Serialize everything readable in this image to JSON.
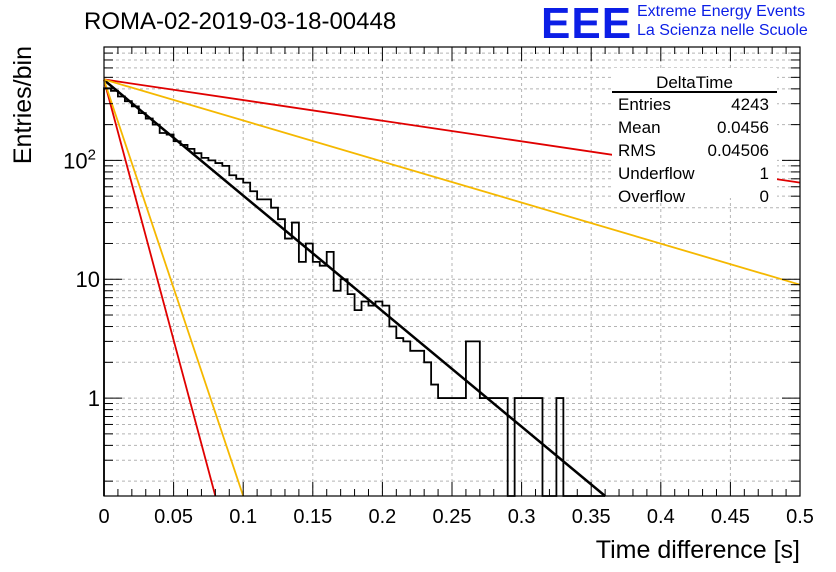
{
  "header": {
    "title": "ROMA-02-2019-03-18-00448",
    "logo_text": "EEE",
    "logo_line1": "Extreme Energy Events",
    "logo_line2": "La Scienza nelle Scuole"
  },
  "colors": {
    "frame": "#000000",
    "grid": "#b4b4b4",
    "histogram": "#000000",
    "fit": "#000000",
    "red_curve": "#e00000",
    "orange_curve": "#f5b800",
    "logo": "#0b1ee6"
  },
  "chart_data": {
    "type": "histogram",
    "title": "ROMA-02-2019-03-18-00448",
    "xlabel": "Time difference [s]",
    "ylabel": "Entries/bin",
    "xlim": [
      0,
      0.5
    ],
    "ylim": [
      0.15,
      900
    ],
    "yscale": "log",
    "grid": true,
    "x_ticks": [
      0,
      0.05,
      0.1,
      0.15,
      0.2,
      0.25,
      0.3,
      0.35,
      0.4,
      0.45,
      0.5
    ],
    "x_tick_labels": [
      "0",
      "0.05",
      "0.1",
      "0.15",
      "0.2",
      "0.25",
      "0.3",
      "0.35",
      "0.4",
      "0.45",
      "0.5"
    ],
    "y_ticks": [
      1,
      10,
      100
    ],
    "y_tick_labels": [
      "1",
      "10",
      "10²"
    ],
    "bin_width": 0.005,
    "bins": [
      [
        0.0,
        405
      ],
      [
        0.005,
        385
      ],
      [
        0.01,
        345
      ],
      [
        0.015,
        315
      ],
      [
        0.02,
        285
      ],
      [
        0.025,
        250
      ],
      [
        0.03,
        225
      ],
      [
        0.035,
        200
      ],
      [
        0.04,
        170
      ],
      [
        0.045,
        165
      ],
      [
        0.05,
        145
      ],
      [
        0.055,
        135
      ],
      [
        0.06,
        125
      ],
      [
        0.065,
        115
      ],
      [
        0.07,
        105
      ],
      [
        0.075,
        100
      ],
      [
        0.08,
        95
      ],
      [
        0.085,
        90
      ],
      [
        0.09,
        75
      ],
      [
        0.095,
        70
      ],
      [
        0.1,
        65
      ],
      [
        0.105,
        55
      ],
      [
        0.11,
        47
      ],
      [
        0.115,
        47
      ],
      [
        0.12,
        40
      ],
      [
        0.125,
        32
      ],
      [
        0.13,
        22
      ],
      [
        0.135,
        30
      ],
      [
        0.14,
        14
      ],
      [
        0.145,
        20
      ],
      [
        0.15,
        14
      ],
      [
        0.155,
        13
      ],
      [
        0.16,
        17
      ],
      [
        0.165,
        8
      ],
      [
        0.17,
        10
      ],
      [
        0.175,
        7.5
      ],
      [
        0.18,
        5.5
      ],
      [
        0.185,
        6.5
      ],
      [
        0.19,
        6
      ],
      [
        0.195,
        6.5
      ],
      [
        0.2,
        6
      ],
      [
        0.205,
        4
      ],
      [
        0.21,
        3.2
      ],
      [
        0.215,
        3
      ],
      [
        0.22,
        2.5
      ],
      [
        0.225,
        2.5
      ],
      [
        0.23,
        2
      ],
      [
        0.235,
        1.3
      ],
      [
        0.24,
        1
      ],
      [
        0.245,
        1
      ],
      [
        0.25,
        1
      ],
      [
        0.255,
        1
      ],
      [
        0.26,
        3
      ],
      [
        0.265,
        3
      ],
      [
        0.27,
        1
      ],
      [
        0.275,
        1
      ],
      [
        0.28,
        1
      ],
      [
        0.285,
        1
      ],
      [
        0.29,
        0.15
      ],
      [
        0.295,
        1
      ],
      [
        0.3,
        1
      ],
      [
        0.305,
        1
      ],
      [
        0.31,
        1
      ],
      [
        0.315,
        0.15
      ],
      [
        0.32,
        0.15
      ],
      [
        0.325,
        1
      ],
      [
        0.33,
        0.15
      ],
      [
        0.335,
        0.15
      ],
      [
        0.34,
        0.15
      ],
      [
        0.345,
        0.15
      ],
      [
        0.35,
        0.15
      ],
      [
        0.355,
        0.15
      ]
    ],
    "series": [
      {
        "name": "exponential fit",
        "color": "#000000",
        "x": [
          0,
          0.36
        ],
        "y": [
          475,
          0.15
        ]
      },
      {
        "name": "red steep",
        "color": "#e00000",
        "x": [
          0,
          0.08
        ],
        "y": [
          475,
          0.15
        ]
      },
      {
        "name": "orange steep",
        "color": "#f5b800",
        "x": [
          0,
          0.1
        ],
        "y": [
          475,
          0.15
        ]
      },
      {
        "name": "red shallow",
        "color": "#e00000",
        "x": [
          0,
          0.5
        ],
        "y": [
          480,
          65
        ]
      },
      {
        "name": "orange shallow",
        "color": "#f5b800",
        "x": [
          0,
          0.5
        ],
        "y": [
          480,
          9
        ]
      }
    ],
    "stats": {
      "title": "DeltaTime",
      "rows": [
        {
          "label": "Entries",
          "value": "4243"
        },
        {
          "label": "Mean",
          "value": "0.0456"
        },
        {
          "label": "RMS",
          "value": "0.04506"
        },
        {
          "label": "Underflow",
          "value": "1"
        },
        {
          "label": "Overflow",
          "value": "0"
        }
      ]
    }
  }
}
